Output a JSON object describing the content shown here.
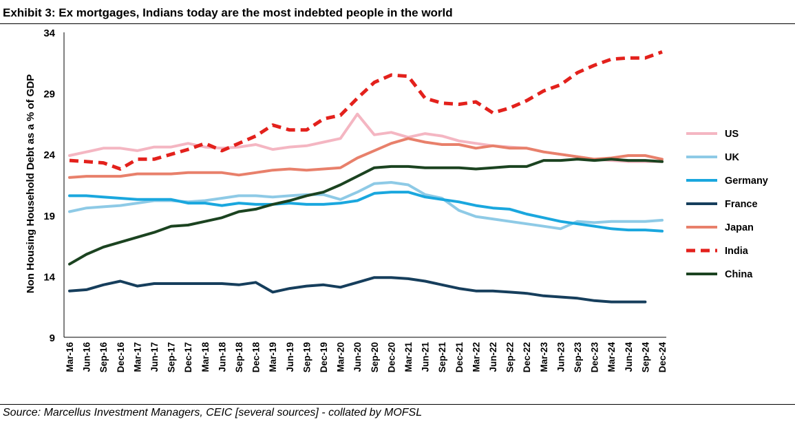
{
  "header": {
    "title": "Exhibit 3: Ex mortgages, Indians today are the most indebted people in the world"
  },
  "footer": {
    "source": "Source: Marcellus Investment Managers, CEIC [several sources] - collated by MOFSL"
  },
  "chart_data": {
    "type": "line",
    "title": "Exhibit 3: Ex mortgages, Indians today are the most indebted people in the world",
    "xlabel": "",
    "ylabel": "Non Housing Household Debt as a % of GDP",
    "ylim": [
      9,
      34
    ],
    "yticks": [
      9,
      14,
      19,
      24,
      29,
      34
    ],
    "grid": false,
    "legend_position": "right",
    "categories": [
      "Mar-16",
      "Jun-16",
      "Sep-16",
      "Dec-16",
      "Mar-17",
      "Jun-17",
      "Sep-17",
      "Dec-17",
      "Mar-18",
      "Jun-18",
      "Sep-18",
      "Dec-18",
      "Mar-19",
      "Jun-19",
      "Sep-19",
      "Dec-19",
      "Mar-20",
      "Jun-20",
      "Sep-20",
      "Dec-20",
      "Mar-21",
      "Jun-21",
      "Sep-21",
      "Dec-21",
      "Mar-22",
      "Jun-22",
      "Sep-22",
      "Dec-22",
      "Mar-23",
      "Jun-23",
      "Sep-23",
      "Dec-23",
      "Mar-24",
      "Jun-24",
      "Sep-24",
      "Dec-24"
    ],
    "series": [
      {
        "name": "US",
        "color": "#f4b6c2",
        "dash": "solid",
        "values": [
          23.9,
          24.2,
          24.5,
          24.5,
          24.3,
          24.6,
          24.6,
          24.9,
          24.6,
          24.5,
          24.6,
          24.8,
          24.4,
          24.6,
          24.7,
          25.0,
          25.3,
          27.3,
          25.6,
          25.8,
          25.4,
          25.7,
          25.5,
          25.1,
          24.9,
          24.7,
          24.6,
          24.5,
          24.2,
          24.0,
          23.8,
          23.6,
          23.5,
          23.4,
          23.4,
          23.4
        ]
      },
      {
        "name": "UK",
        "color": "#8ecae6",
        "dash": "solid",
        "values": [
          19.3,
          19.6,
          19.7,
          19.8,
          20.0,
          20.2,
          20.2,
          20.1,
          20.2,
          20.4,
          20.6,
          20.6,
          20.5,
          20.6,
          20.7,
          20.7,
          20.3,
          20.9,
          21.6,
          21.7,
          21.5,
          20.7,
          20.4,
          19.4,
          18.9,
          18.7,
          18.5,
          18.3,
          18.1,
          17.9,
          18.5,
          18.4,
          18.5,
          18.5,
          18.5,
          18.6
        ]
      },
      {
        "name": "Germany",
        "color": "#1aa7de",
        "dash": "solid",
        "values": [
          20.6,
          20.6,
          20.5,
          20.4,
          20.3,
          20.3,
          20.3,
          20.0,
          20.0,
          19.8,
          20.0,
          19.9,
          19.9,
          20.0,
          19.9,
          19.9,
          20.0,
          20.2,
          20.8,
          20.9,
          20.9,
          20.5,
          20.3,
          20.1,
          19.8,
          19.6,
          19.5,
          19.1,
          18.8,
          18.5,
          18.3,
          18.1,
          17.9,
          17.8,
          17.8,
          17.7
        ]
      },
      {
        "name": "France",
        "color": "#163e5c",
        "dash": "solid",
        "values": [
          12.8,
          12.9,
          13.3,
          13.6,
          13.2,
          13.4,
          13.4,
          13.4,
          13.4,
          13.4,
          13.3,
          13.5,
          12.7,
          13.0,
          13.2,
          13.3,
          13.1,
          13.5,
          13.9,
          13.9,
          13.8,
          13.6,
          13.3,
          13.0,
          12.8,
          12.8,
          12.7,
          12.6,
          12.4,
          12.3,
          12.2,
          12.0,
          11.9,
          11.9,
          11.9,
          null
        ]
      },
      {
        "name": "Japan",
        "color": "#e8806b",
        "dash": "solid",
        "values": [
          22.1,
          22.2,
          22.2,
          22.2,
          22.4,
          22.4,
          22.4,
          22.5,
          22.5,
          22.5,
          22.3,
          22.5,
          22.7,
          22.8,
          22.7,
          22.8,
          22.9,
          23.7,
          24.3,
          24.9,
          25.3,
          25.0,
          24.8,
          24.8,
          24.5,
          24.7,
          24.5,
          24.5,
          24.2,
          24.0,
          23.8,
          23.6,
          23.7,
          23.9,
          23.9,
          23.6
        ]
      },
      {
        "name": "India",
        "color": "#e3211c",
        "dash": "dashed",
        "values": [
          23.5,
          23.4,
          23.3,
          22.8,
          23.6,
          23.6,
          24.0,
          24.4,
          24.9,
          24.3,
          24.9,
          25.5,
          26.4,
          26.0,
          26.0,
          26.9,
          27.2,
          28.6,
          29.9,
          30.5,
          30.4,
          28.6,
          28.2,
          28.1,
          28.3,
          27.4,
          27.8,
          28.4,
          29.2,
          29.7,
          30.7,
          31.3,
          31.8,
          31.9,
          31.9,
          32.4
        ]
      },
      {
        "name": "China",
        "color": "#1b4320",
        "dash": "solid",
        "values": [
          15.0,
          15.8,
          16.4,
          16.8,
          17.2,
          17.6,
          18.1,
          18.2,
          18.5,
          18.8,
          19.3,
          19.5,
          19.9,
          20.2,
          20.6,
          20.9,
          21.5,
          22.2,
          22.9,
          23.0,
          23.0,
          22.9,
          22.9,
          22.9,
          22.8,
          22.9,
          23.0,
          23.0,
          23.5,
          23.5,
          23.6,
          23.5,
          23.6,
          23.5,
          23.5,
          23.4
        ]
      }
    ]
  }
}
